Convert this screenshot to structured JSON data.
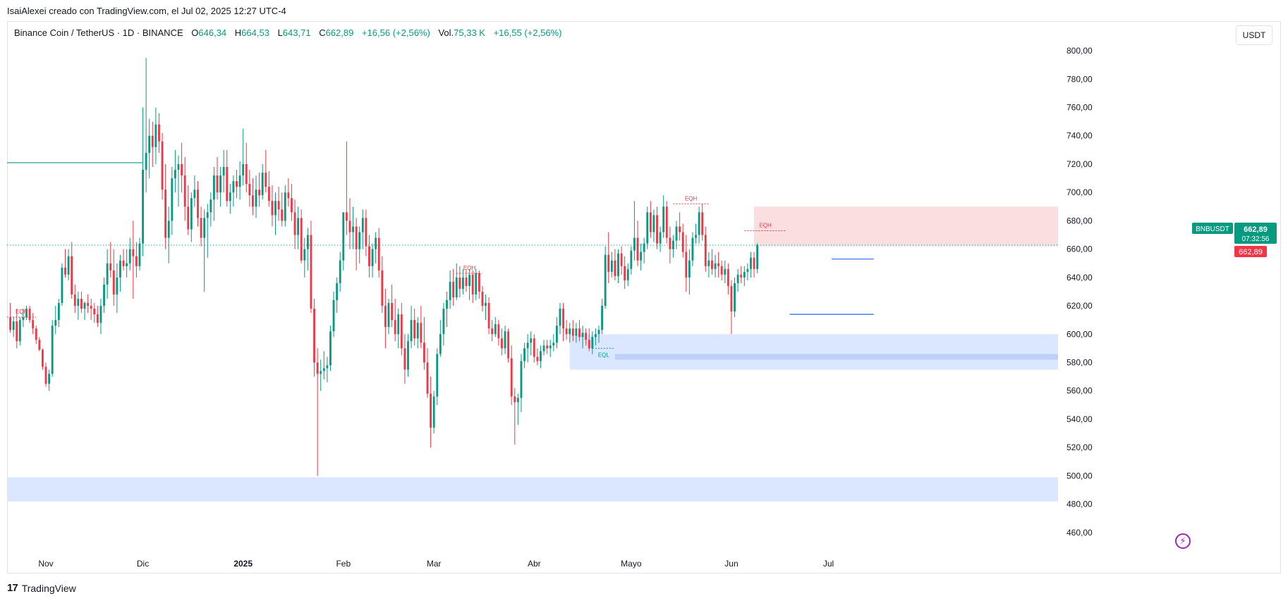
{
  "header": {
    "attribution": "IsaiAlexei creado con TradingView.com, el Jul 02, 2025 12:27 UTC-4",
    "symbol": "Binance Coin / TetherUS · 1D · BINANCE",
    "o_label": "O",
    "o_value": "646,34",
    "h_label": "H",
    "h_value": "664,53",
    "l_label": "L",
    "l_value": "643,71",
    "c_label": "C",
    "c_value": "662,89",
    "change": "+16,56 (+2,56%)",
    "vol_label": "Vol.",
    "vol_value": "75,33 K",
    "vol_change": "+16,55 (+2,56%)",
    "unit_button": "USDT"
  },
  "footer": {
    "brand": "TradingView",
    "logo_text": "17"
  },
  "colors": {
    "up": "#089981",
    "down": "#f23645",
    "blue": "#2962ff",
    "supply": "#f9dadd",
    "demand": "#d7e3ff"
  },
  "chart_data": {
    "type": "candlestick",
    "symbol": "BNBUSDT",
    "currency": "USDT",
    "price_range": [
      448,
      806
    ],
    "price_ticks": [
      "800,00",
      "780,00",
      "760,00",
      "740,00",
      "720,00",
      "700,00",
      "680,00",
      "660,00",
      "640,00",
      "620,00",
      "600,00",
      "580,00",
      "560,00",
      "540,00",
      "520,00",
      "500,00",
      "480,00",
      "460,00"
    ],
    "x_range_days": [
      -45,
      280
    ],
    "x_labels": [
      {
        "label": "Nov",
        "day": -33
      },
      {
        "label": "Dic",
        "day": -3
      },
      {
        "label": "2025",
        "day": 28,
        "bold": true
      },
      {
        "label": "Feb",
        "day": 59
      },
      {
        "label": "Mar",
        "day": 87
      },
      {
        "label": "Abr",
        "day": 118
      },
      {
        "label": "Mayo",
        "day": 148
      },
      {
        "label": "Jun",
        "day": 179
      },
      {
        "label": "Jul",
        "day": 209
      }
    ],
    "start_day": -44,
    "last_price": "662,89",
    "last_price_value": 662.89,
    "countdown": "07:32:56",
    "candles": [
      [
        612,
        622,
        601,
        603
      ],
      [
        603,
        612,
        598,
        609
      ],
      [
        609,
        618,
        590,
        595
      ],
      [
        595,
        612,
        592,
        610
      ],
      [
        610,
        618,
        605,
        612
      ],
      [
        612,
        620,
        610,
        618
      ],
      [
        618,
        620,
        608,
        610
      ],
      [
        610,
        615,
        600,
        604
      ],
      [
        604,
        606,
        593,
        596
      ],
      [
        596,
        598,
        588,
        589
      ],
      [
        589,
        590,
        575,
        577
      ],
      [
        577,
        580,
        563,
        565
      ],
      [
        565,
        575,
        560,
        572
      ],
      [
        572,
        610,
        570,
        606
      ],
      [
        606,
        620,
        600,
        610
      ],
      [
        610,
        625,
        605,
        622
      ],
      [
        622,
        650,
        620,
        647
      ],
      [
        647,
        660,
        640,
        642
      ],
      [
        642,
        660,
        638,
        655
      ],
      [
        655,
        665,
        625,
        628
      ],
      [
        628,
        635,
        615,
        620
      ],
      [
        620,
        630,
        610,
        625
      ],
      [
        625,
        630,
        615,
        618
      ],
      [
        618,
        623,
        610,
        622
      ],
      [
        622,
        628,
        615,
        620
      ],
      [
        620,
        625,
        610,
        618
      ],
      [
        618,
        622,
        608,
        614
      ],
      [
        614,
        620,
        605,
        608
      ],
      [
        608,
        625,
        600,
        620
      ],
      [
        620,
        640,
        615,
        635
      ],
      [
        635,
        660,
        625,
        650
      ],
      [
        650,
        665,
        640,
        645
      ],
      [
        645,
        660,
        620,
        628
      ],
      [
        628,
        650,
        615,
        640
      ],
      [
        640,
        656,
        630,
        652
      ],
      [
        652,
        660,
        645,
        648
      ],
      [
        648,
        660,
        640,
        650
      ],
      [
        650,
        668,
        645,
        660
      ],
      [
        660,
        680,
        625,
        655
      ],
      [
        655,
        665,
        640,
        648
      ],
      [
        648,
        668,
        645,
        664
      ],
      [
        664,
        760,
        655,
        716
      ],
      [
        716,
        795,
        700,
        728
      ],
      [
        728,
        752,
        710,
        740
      ],
      [
        740,
        750,
        718,
        732
      ],
      [
        732,
        760,
        720,
        748
      ],
      [
        748,
        756,
        728,
        736
      ],
      [
        736,
        742,
        695,
        702
      ],
      [
        702,
        720,
        660,
        668
      ],
      [
        668,
        690,
        650,
        680
      ],
      [
        680,
        718,
        670,
        710
      ],
      [
        710,
        730,
        700,
        716
      ],
      [
        716,
        726,
        690,
        720
      ],
      [
        720,
        735,
        700,
        712
      ],
      [
        712,
        725,
        680,
        690
      ],
      [
        690,
        705,
        670,
        674
      ],
      [
        674,
        700,
        665,
        696
      ],
      [
        696,
        712,
        690,
        702
      ],
      [
        702,
        708,
        676,
        682
      ],
      [
        682,
        690,
        662,
        668
      ],
      [
        668,
        688,
        630,
        682
      ],
      [
        682,
        692,
        654,
        686
      ],
      [
        686,
        700,
        676,
        695
      ],
      [
        695,
        718,
        680,
        712
      ],
      [
        712,
        725,
        695,
        700
      ],
      [
        700,
        718,
        690,
        712
      ],
      [
        712,
        730,
        700,
        718
      ],
      [
        718,
        730,
        690,
        694
      ],
      [
        694,
        706,
        685,
        700
      ],
      [
        700,
        712,
        690,
        708
      ],
      [
        708,
        716,
        696,
        704
      ],
      [
        704,
        722,
        695,
        712
      ],
      [
        712,
        745,
        705,
        720
      ],
      [
        720,
        735,
        700,
        706
      ],
      [
        706,
        716,
        690,
        698
      ],
      [
        698,
        710,
        684,
        690
      ],
      [
        690,
        712,
        682,
        702
      ],
      [
        702,
        714,
        690,
        698
      ],
      [
        698,
        720,
        695,
        714
      ],
      [
        714,
        730,
        700,
        704
      ],
      [
        704,
        715,
        690,
        694
      ],
      [
        694,
        705,
        676,
        684
      ],
      [
        684,
        700,
        670,
        694
      ],
      [
        694,
        704,
        680,
        688
      ],
      [
        688,
        700,
        676,
        680
      ],
      [
        680,
        705,
        676,
        700
      ],
      [
        700,
        710,
        690,
        696
      ],
      [
        696,
        706,
        680,
        686
      ],
      [
        686,
        695,
        660,
        670
      ],
      [
        670,
        690,
        660,
        682
      ],
      [
        682,
        688,
        650,
        652
      ],
      [
        652,
        668,
        640,
        660
      ],
      [
        660,
        675,
        645,
        670
      ],
      [
        670,
        680,
        615,
        618
      ],
      [
        618,
        625,
        570,
        580
      ],
      [
        580,
        590,
        500,
        572
      ],
      [
        572,
        582,
        560,
        574
      ],
      [
        574,
        588,
        568,
        576
      ],
      [
        576,
        584,
        566,
        578
      ],
      [
        578,
        606,
        574,
        602
      ],
      [
        602,
        630,
        598,
        624
      ],
      [
        624,
        640,
        615,
        636
      ],
      [
        636,
        658,
        630,
        652
      ],
      [
        652,
        686,
        645,
        686
      ],
      [
        686,
        736,
        670,
        680
      ],
      [
        680,
        696,
        660,
        672
      ],
      [
        672,
        690,
        660,
        676
      ],
      [
        676,
        682,
        645,
        660
      ],
      [
        660,
        676,
        650,
        672
      ],
      [
        672,
        688,
        660,
        682
      ],
      [
        682,
        688,
        655,
        662
      ],
      [
        662,
        670,
        640,
        648
      ],
      [
        648,
        664,
        640,
        660
      ],
      [
        660,
        672,
        650,
        668
      ],
      [
        668,
        675,
        640,
        645
      ],
      [
        645,
        655,
        615,
        620
      ],
      [
        620,
        632,
        590,
        605
      ],
      [
        605,
        625,
        600,
        622
      ],
      [
        622,
        635,
        605,
        610
      ],
      [
        610,
        625,
        595,
        600
      ],
      [
        600,
        618,
        590,
        614
      ],
      [
        614,
        622,
        585,
        590
      ],
      [
        590,
        600,
        565,
        575
      ],
      [
        575,
        600,
        570,
        595
      ],
      [
        595,
        620,
        590,
        610
      ],
      [
        610,
        618,
        592,
        597
      ],
      [
        597,
        612,
        590,
        608
      ],
      [
        608,
        620,
        590,
        594
      ],
      [
        594,
        612,
        575,
        580
      ],
      [
        580,
        590,
        555,
        558
      ],
      [
        558,
        570,
        520,
        534
      ],
      [
        534,
        560,
        530,
        556
      ],
      [
        556,
        590,
        550,
        586
      ],
      [
        586,
        610,
        584,
        600
      ],
      [
        600,
        622,
        592,
        618
      ],
      [
        618,
        630,
        605,
        624
      ],
      [
        624,
        645,
        618,
        637
      ],
      [
        637,
        646,
        620,
        626
      ],
      [
        626,
        650,
        624,
        640
      ],
      [
        640,
        648,
        626,
        632
      ],
      [
        632,
        646,
        628,
        640
      ],
      [
        640,
        646,
        630,
        634
      ],
      [
        634,
        646,
        624,
        642
      ],
      [
        642,
        645,
        622,
        628
      ],
      [
        628,
        646,
        624,
        643
      ],
      [
        643,
        645,
        625,
        630
      ],
      [
        630,
        634,
        616,
        620
      ],
      [
        620,
        628,
        610,
        622
      ],
      [
        622,
        626,
        600,
        604
      ],
      [
        604,
        610,
        595,
        600
      ],
      [
        600,
        612,
        598,
        607
      ],
      [
        607,
        610,
        592,
        597
      ],
      [
        597,
        604,
        585,
        590
      ],
      [
        590,
        606,
        586,
        602
      ],
      [
        602,
        604,
        580,
        583
      ],
      [
        583,
        592,
        550,
        556
      ],
      [
        556,
        562,
        522,
        552
      ],
      [
        552,
        558,
        536,
        555
      ],
      [
        555,
        586,
        545,
        581
      ],
      [
        581,
        594,
        576,
        590
      ],
      [
        590,
        600,
        580,
        594
      ],
      [
        594,
        602,
        585,
        597
      ],
      [
        597,
        600,
        580,
        584
      ],
      [
        584,
        590,
        578,
        581
      ],
      [
        581,
        592,
        576,
        588
      ],
      [
        588,
        596,
        585,
        592
      ],
      [
        592,
        596,
        586,
        590
      ],
      [
        590,
        596,
        584,
        592
      ],
      [
        592,
        600,
        588,
        594
      ],
      [
        594,
        612,
        590,
        606
      ],
      [
        606,
        622,
        600,
        618
      ],
      [
        618,
        622,
        595,
        604
      ],
      [
        604,
        610,
        596,
        600
      ],
      [
        600,
        608,
        594,
        604
      ],
      [
        604,
        610,
        595,
        599
      ],
      [
        599,
        608,
        594,
        604
      ],
      [
        604,
        610,
        595,
        598
      ],
      [
        598,
        606,
        590,
        601
      ],
      [
        601,
        604,
        592,
        596
      ],
      [
        596,
        604,
        588,
        590
      ],
      [
        590,
        602,
        586,
        598
      ],
      [
        598,
        604,
        592,
        600
      ],
      [
        600,
        606,
        594,
        603
      ],
      [
        603,
        625,
        600,
        620
      ],
      [
        620,
        662,
        618,
        656
      ],
      [
        656,
        672,
        636,
        644
      ],
      [
        644,
        658,
        640,
        652
      ],
      [
        652,
        660,
        638,
        641
      ],
      [
        641,
        660,
        636,
        657
      ],
      [
        657,
        662,
        642,
        648
      ],
      [
        648,
        655,
        632,
        638
      ],
      [
        638,
        650,
        634,
        646
      ],
      [
        646,
        662,
        642,
        659
      ],
      [
        659,
        694,
        652,
        668
      ],
      [
        668,
        680,
        648,
        652
      ],
      [
        652,
        664,
        645,
        658
      ],
      [
        658,
        668,
        650,
        664
      ],
      [
        664,
        690,
        660,
        686
      ],
      [
        686,
        694,
        668,
        672
      ],
      [
        672,
        688,
        665,
        684
      ],
      [
        684,
        690,
        660,
        664
      ],
      [
        664,
        676,
        658,
        672
      ],
      [
        672,
        698,
        668,
        690
      ],
      [
        690,
        694,
        664,
        668
      ],
      [
        668,
        676,
        650,
        660
      ],
      [
        660,
        670,
        654,
        666
      ],
      [
        666,
        680,
        660,
        676
      ],
      [
        676,
        686,
        666,
        672
      ],
      [
        672,
        678,
        654,
        658
      ],
      [
        658,
        670,
        630,
        640
      ],
      [
        640,
        660,
        628,
        652
      ],
      [
        652,
        672,
        648,
        668
      ],
      [
        668,
        678,
        664,
        670
      ],
      [
        670,
        690,
        664,
        686
      ],
      [
        686,
        692,
        666,
        670
      ],
      [
        670,
        676,
        644,
        648
      ],
      [
        648,
        658,
        640,
        652
      ],
      [
        652,
        660,
        642,
        646
      ],
      [
        646,
        656,
        640,
        650
      ],
      [
        650,
        658,
        640,
        648
      ],
      [
        648,
        652,
        638,
        642
      ],
      [
        642,
        652,
        636,
        646
      ],
      [
        646,
        650,
        628,
        634
      ],
      [
        634,
        638,
        600,
        616
      ],
      [
        616,
        640,
        612,
        636
      ],
      [
        636,
        646,
        630,
        642
      ],
      [
        642,
        648,
        636,
        640
      ],
      [
        640,
        648,
        634,
        644
      ],
      [
        644,
        650,
        638,
        646
      ],
      [
        646,
        658,
        640,
        654
      ],
      [
        654,
        658,
        640,
        646
      ],
      [
        646,
        664,
        643,
        663
      ]
    ],
    "zones": [
      {
        "type": "demand",
        "low": 575,
        "high": 600,
        "start_day": 129
      },
      {
        "type": "demand-strip",
        "low": 582,
        "high": 586,
        "start_day": 143
      },
      {
        "type": "demand",
        "low": 482,
        "high": 499,
        "start_day": -45
      },
      {
        "type": "supply",
        "low": 662,
        "high": 690,
        "start_day": 186
      }
    ],
    "levels": [
      {
        "price": 721,
        "from_day": -45,
        "to_day": -3,
        "color": "up",
        "style": "solid"
      },
      {
        "price": 653,
        "from_day": 210,
        "to_day": 223,
        "color": "blue",
        "style": "solid"
      },
      {
        "price": 614,
        "from_day": 197,
        "to_day": 223,
        "color": "blue",
        "style": "solid"
      }
    ],
    "annotations": [
      {
        "text": "EQH",
        "price": 612,
        "from_day": -45,
        "to_day": -36,
        "color": "down"
      },
      {
        "text": "EQH",
        "price": 643,
        "from_day": 94,
        "to_day": 102,
        "color": "down"
      },
      {
        "text": "EQH",
        "price": 692,
        "from_day": 161,
        "to_day": 172,
        "color": "down"
      },
      {
        "text": "EQH",
        "price": 673,
        "from_day": 183,
        "to_day": 196,
        "color": "down"
      },
      {
        "text": "EQL",
        "price": 590,
        "from_day": 136,
        "to_day": 143,
        "color": "up",
        "below": true
      }
    ]
  }
}
